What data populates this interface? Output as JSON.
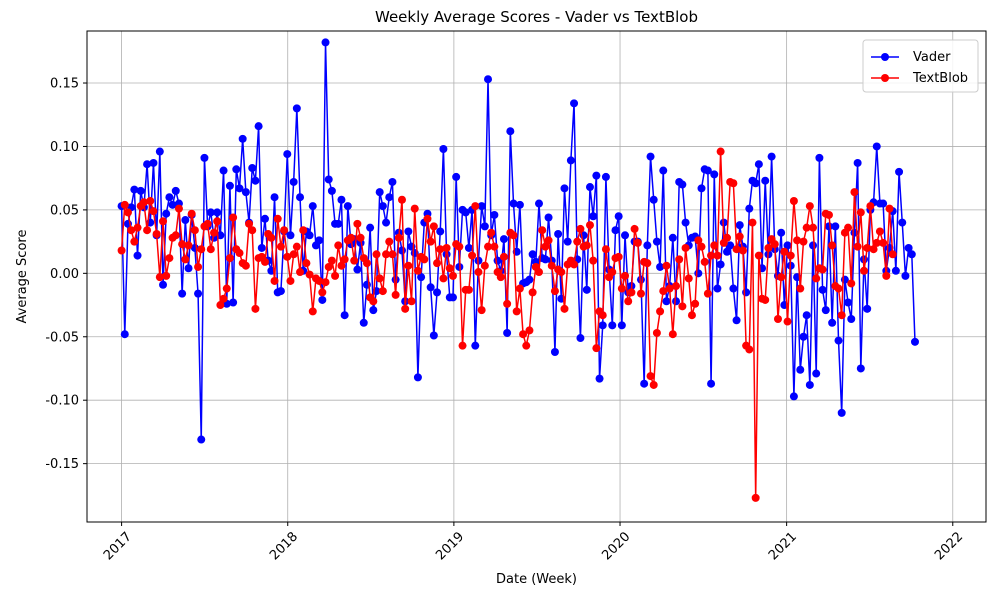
{
  "chart_data": {
    "type": "line",
    "title": "Weekly Average Scores - Vader vs TextBlob",
    "xlabel": "Date (Week)",
    "ylabel": "Average Score",
    "x_tick_labels": [
      "2017",
      "2018",
      "2019",
      "2020",
      "2021",
      "2022"
    ],
    "y_tick_labels": [
      "-0.15",
      "-0.10",
      "-0.05",
      "0.00",
      "0.05",
      "0.10",
      "0.15"
    ],
    "xlim": [
      "2016-10-17",
      "2022-03-15"
    ],
    "ylim": [
      -0.196,
      0.191
    ],
    "grid": true,
    "legend_position": "upper right",
    "series": [
      {
        "name": "Vader",
        "color": "#0000ff",
        "start": "2017-01-01",
        "interval_days": 7,
        "values": [
          0.053,
          -0.048,
          0.039,
          0.052,
          0.066,
          0.014,
          0.065,
          0.052,
          0.086,
          0.04,
          0.087,
          0.03,
          0.096,
          -0.009,
          0.047,
          0.06,
          0.054,
          0.065,
          0.055,
          -0.016,
          0.042,
          0.004,
          0.046,
          0.02,
          -0.016,
          -0.131,
          0.091,
          0.037,
          0.048,
          0.028,
          0.048,
          0.03,
          0.081,
          -0.024,
          0.069,
          -0.023,
          0.082,
          0.067,
          0.106,
          0.064,
          0.04,
          0.083,
          0.073,
          0.116,
          0.02,
          0.043,
          0.01,
          0.002,
          0.06,
          -0.015,
          -0.014,
          0.033,
          0.094,
          0.03,
          0.072,
          0.13,
          0.06,
          0.002,
          0.033,
          0.03,
          0.053,
          0.022,
          0.026,
          -0.021,
          0.182,
          0.074,
          0.065,
          0.039,
          0.039,
          0.058,
          -0.033,
          0.053,
          0.023,
          0.027,
          0.003,
          0.024,
          -0.039,
          -0.009,
          0.036,
          -0.029,
          -0.014,
          0.064,
          0.053,
          0.04,
          0.06,
          0.072,
          -0.005,
          0.032,
          0.018,
          -0.022,
          0.033,
          0.021,
          0.016,
          -0.082,
          -0.003,
          0.04,
          0.047,
          -0.011,
          -0.049,
          -0.015,
          0.033,
          0.098,
          0.015,
          -0.019,
          -0.019,
          0.076,
          0.005,
          0.05,
          0.048,
          0.02,
          0.05,
          -0.057,
          0.01,
          0.053,
          0.037,
          0.153,
          0.03,
          0.046,
          0.01,
          0.002,
          0.027,
          -0.047,
          0.112,
          0.055,
          0.017,
          0.054,
          -0.008,
          -0.007,
          -0.005,
          0.015,
          0.009,
          0.055,
          0.012,
          0.011,
          0.044,
          0.01,
          -0.062,
          0.031,
          -0.02,
          0.067,
          0.025,
          0.089,
          0.134,
          0.011,
          -0.051,
          0.03,
          -0.013,
          0.068,
          0.045,
          0.077,
          -0.083,
          -0.041,
          0.076,
          0.003,
          -0.041,
          0.034,
          0.045,
          -0.041,
          0.03,
          -0.015,
          -0.01,
          0.025,
          0.025,
          -0.005,
          -0.087,
          0.022,
          0.092,
          0.058,
          0.025,
          0.005,
          0.081,
          -0.022,
          -0.01,
          0.028,
          -0.022,
          0.072,
          0.07,
          0.04,
          0.022,
          0.028,
          0.029,
          0.0,
          0.067,
          0.082,
          0.081,
          -0.087,
          0.078,
          -0.012,
          0.007,
          0.04,
          0.017,
          0.022,
          -0.012,
          -0.037,
          0.038,
          0.021,
          -0.015,
          0.051,
          0.073,
          0.071,
          0.086,
          0.004,
          0.073,
          0.015,
          0.092,
          0.019,
          -0.002,
          0.032,
          -0.025,
          0.022,
          0.006,
          -0.097,
          -0.003,
          -0.076,
          -0.05,
          -0.033,
          -0.088,
          0.022,
          -0.079,
          0.091,
          -0.013,
          -0.029,
          0.037,
          -0.039,
          0.037,
          -0.053,
          -0.11,
          -0.005,
          -0.023,
          -0.036,
          0.032,
          0.087,
          -0.075,
          0.011,
          -0.028,
          0.05,
          0.056,
          0.1,
          0.055,
          0.055,
          0.002,
          0.02,
          0.049,
          0.002,
          0.08,
          0.04,
          -0.002,
          0.02,
          0.015,
          -0.054
        ]
      },
      {
        "name": "TextBlob",
        "color": "#ff0000",
        "start": "2017-01-01",
        "interval_days": 7,
        "values": [
          0.018,
          0.054,
          0.048,
          0.034,
          0.025,
          0.036,
          0.053,
          0.056,
          0.034,
          0.057,
          0.049,
          0.031,
          -0.003,
          0.041,
          -0.002,
          0.012,
          0.028,
          0.03,
          0.051,
          0.023,
          0.011,
          0.022,
          0.047,
          0.034,
          0.005,
          0.019,
          0.037,
          0.039,
          0.019,
          0.032,
          0.041,
          -0.025,
          -0.02,
          -0.012,
          0.012,
          0.044,
          0.019,
          0.016,
          0.008,
          0.006,
          0.039,
          0.034,
          -0.028,
          0.012,
          0.013,
          0.009,
          0.031,
          0.028,
          -0.006,
          0.043,
          0.021,
          0.034,
          0.013,
          -0.006,
          0.015,
          0.021,
          0.001,
          0.034,
          0.008,
          -0.001,
          -0.03,
          -0.004,
          -0.006,
          -0.015,
          -0.007,
          0.005,
          0.01,
          -0.002,
          0.022,
          0.006,
          0.011,
          0.026,
          0.028,
          0.01,
          0.039,
          0.028,
          0.012,
          0.008,
          -0.019,
          -0.022,
          0.015,
          -0.004,
          -0.014,
          0.015,
          0.025,
          0.015,
          -0.017,
          0.028,
          0.058,
          -0.028,
          0.006,
          -0.022,
          0.051,
          0.002,
          0.013,
          0.011,
          0.043,
          0.025,
          0.037,
          0.008,
          0.019,
          -0.004,
          0.02,
          0.004,
          -0.002,
          0.023,
          0.021,
          -0.057,
          -0.013,
          -0.013,
          0.014,
          0.053,
          0.001,
          -0.029,
          0.006,
          0.021,
          0.032,
          0.021,
          0.001,
          -0.003,
          0.013,
          -0.024,
          0.032,
          0.03,
          -0.03,
          -0.012,
          -0.048,
          -0.057,
          -0.045,
          -0.015,
          0.005,
          0.001,
          0.034,
          0.021,
          0.026,
          0.006,
          -0.014,
          0.003,
          0.001,
          -0.028,
          0.007,
          0.01,
          0.007,
          0.025,
          0.035,
          0.021,
          0.022,
          0.038,
          0.01,
          -0.059,
          -0.03,
          -0.033,
          0.019,
          -0.003,
          0.001,
          0.012,
          0.013,
          -0.012,
          -0.002,
          -0.022,
          -0.015,
          0.035,
          0.024,
          -0.016,
          0.009,
          0.008,
          -0.081,
          -0.088,
          -0.047,
          -0.03,
          -0.014,
          0.006,
          -0.012,
          -0.048,
          -0.01,
          0.011,
          -0.026,
          0.02,
          -0.004,
          -0.033,
          -0.024,
          0.026,
          0.021,
          0.009,
          -0.016,
          0.014,
          0.022,
          0.014,
          0.096,
          0.024,
          0.028,
          0.072,
          0.071,
          0.019,
          0.029,
          0.018,
          -0.057,
          -0.06,
          0.04,
          -0.177,
          0.014,
          -0.02,
          -0.021,
          0.02,
          0.027,
          0.023,
          -0.036,
          -0.003,
          0.017,
          -0.038,
          0.014,
          0.057,
          0.026,
          -0.012,
          0.025,
          0.036,
          0.053,
          0.036,
          -0.004,
          0.004,
          0.003,
          0.047,
          0.046,
          0.022,
          -0.01,
          -0.012,
          -0.033,
          0.032,
          0.036,
          -0.008,
          0.064,
          0.021,
          0.048,
          0.002,
          0.02,
          0.053,
          0.019,
          0.024,
          0.033,
          0.024,
          -0.002,
          0.051,
          0.015
        ]
      }
    ]
  }
}
